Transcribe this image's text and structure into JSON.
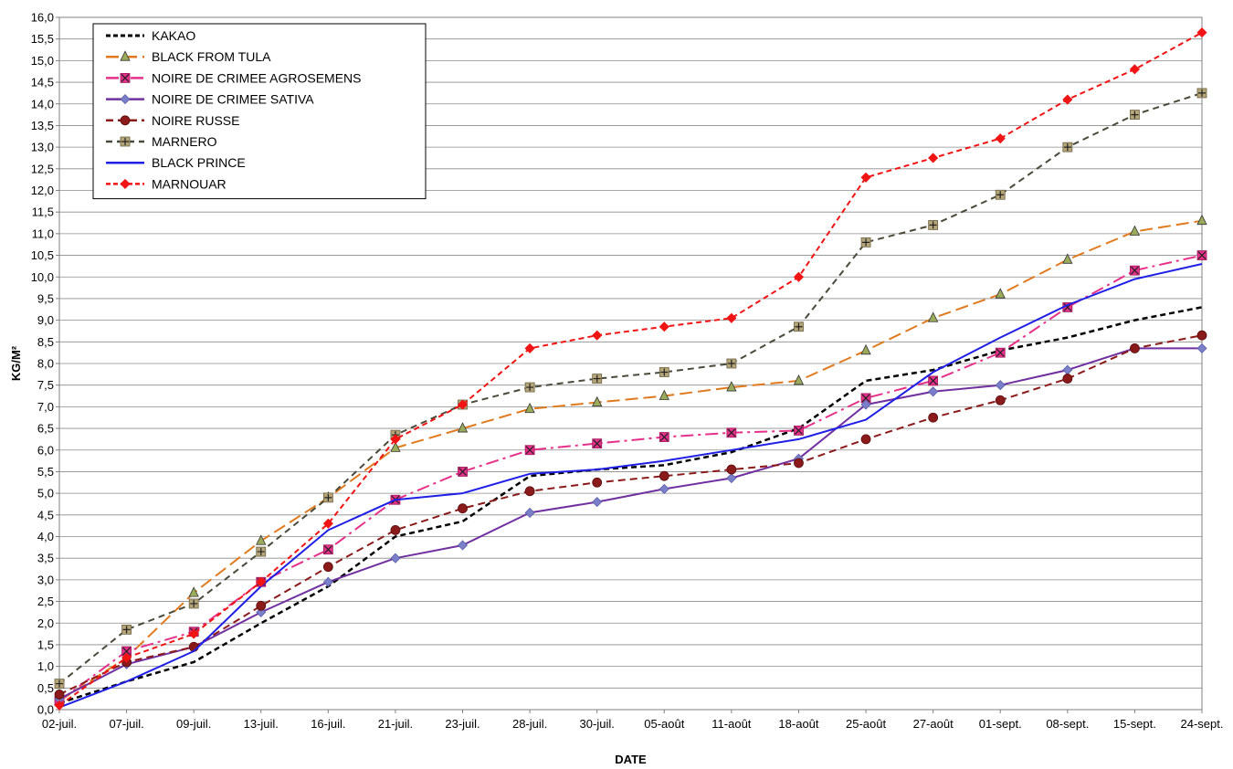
{
  "chart_data": {
    "type": "line",
    "title": "",
    "xlabel": "DATE",
    "ylabel": "KG/M²",
    "ylim": [
      0,
      16
    ],
    "ytick_step": 0.5,
    "grid": true,
    "legend_position": "top-left",
    "categories": [
      "02-juil.",
      "07-juil.",
      "09-juil.",
      "13-juil.",
      "16-juil.",
      "21-juil.",
      "23-juil.",
      "28-juil.",
      "30-juil.",
      "05-août",
      "11-août",
      "18-août",
      "25-août",
      "27-août",
      "01-sept.",
      "08-sept.",
      "15-sept.",
      "24-sept."
    ],
    "y_tick_labels": [
      "0,0",
      "0,5",
      "1,0",
      "1,5",
      "2,0",
      "2,5",
      "3,0",
      "3,5",
      "4,0",
      "4,5",
      "5,0",
      "5,5",
      "6,0",
      "6,5",
      "7,0",
      "7,5",
      "8,0",
      "8,5",
      "9,0",
      "9,5",
      "10,0",
      "10,5",
      "11,0",
      "11,5",
      "12,0",
      "12,5",
      "13,0",
      "13,5",
      "14,0",
      "14,5",
      "15,0",
      "15,5",
      "16,0"
    ],
    "series": [
      {
        "name": "KAKAO",
        "color": "#000000",
        "dash": "6,4",
        "marker": "none",
        "width": 2.5,
        "values": [
          0.15,
          0.65,
          1.1,
          2.0,
          2.85,
          4.0,
          4.35,
          5.4,
          5.55,
          5.65,
          5.95,
          6.5,
          7.6,
          7.85,
          8.3,
          8.6,
          9.0,
          9.3
        ]
      },
      {
        "name": "BLACK FROM TULA",
        "color": "#e07a1f",
        "dash": "14,6",
        "marker": "triangle",
        "markerFill": "#9aab5b",
        "width": 2,
        "values": [
          0.2,
          1.2,
          2.7,
          3.9,
          4.9,
          6.05,
          6.5,
          6.95,
          7.1,
          7.25,
          7.45,
          7.6,
          8.3,
          9.05,
          9.6,
          10.4,
          11.05,
          11.3
        ]
      },
      {
        "name": "NOIRE DE CRIMEE AGROSEMENS",
        "color": "#e6308a",
        "dash": "14,5,3,5",
        "marker": "xsquare",
        "markerFill": "#e6308a",
        "width": 2,
        "values": [
          0.2,
          1.35,
          1.8,
          2.95,
          3.7,
          4.85,
          5.5,
          6.0,
          6.15,
          6.3,
          6.4,
          6.45,
          7.2,
          7.6,
          8.25,
          9.3,
          10.15,
          10.5
        ]
      },
      {
        "name": "NOIRE DE CRIMEE SATIVA",
        "color": "#7030a0",
        "dash": "",
        "marker": "diamond",
        "markerFill": "#7b7fc9",
        "width": 2,
        "values": [
          0.25,
          1.05,
          1.45,
          2.25,
          2.95,
          3.5,
          3.8,
          4.55,
          4.8,
          5.1,
          5.35,
          5.8,
          7.05,
          7.35,
          7.5,
          7.85,
          8.35,
          8.35
        ]
      },
      {
        "name": "NOIRE RUSSE",
        "color": "#8b1a1a",
        "dash": "8,5",
        "marker": "circle",
        "markerFill": "#8b1a1a",
        "width": 2,
        "values": [
          0.35,
          1.1,
          1.45,
          2.4,
          3.3,
          4.15,
          4.65,
          5.05,
          5.25,
          5.4,
          5.55,
          5.7,
          6.25,
          6.75,
          7.15,
          7.65,
          8.35,
          8.65
        ]
      },
      {
        "name": "MARNERO",
        "color": "#4a4a3a",
        "dash": "7,5",
        "marker": "plussquare",
        "markerFill": "#b5a67a",
        "width": 2,
        "values": [
          0.6,
          1.85,
          2.45,
          3.65,
          4.9,
          6.35,
          7.05,
          7.45,
          7.65,
          7.8,
          8.0,
          8.85,
          10.8,
          11.2,
          11.9,
          13.0,
          13.75,
          14.25
        ]
      },
      {
        "name": "BLACK PRINCE",
        "color": "#1f1fe6",
        "dash": "",
        "marker": "none",
        "width": 2,
        "values": [
          0.05,
          0.65,
          1.35,
          2.85,
          4.15,
          4.85,
          5.0,
          5.45,
          5.55,
          5.75,
          6.0,
          6.25,
          6.7,
          7.8,
          8.6,
          9.35,
          9.95,
          10.3
        ]
      },
      {
        "name": "MARNOUAR",
        "color": "#f01414",
        "dash": "6,4",
        "marker": "diamond",
        "markerFill": "#f01414",
        "width": 2,
        "values": [
          0.1,
          1.2,
          1.75,
          2.95,
          4.3,
          6.25,
          7.05,
          8.35,
          8.65,
          8.85,
          9.05,
          10.0,
          12.3,
          12.75,
          13.2,
          14.1,
          14.8,
          15.65
        ]
      }
    ]
  }
}
